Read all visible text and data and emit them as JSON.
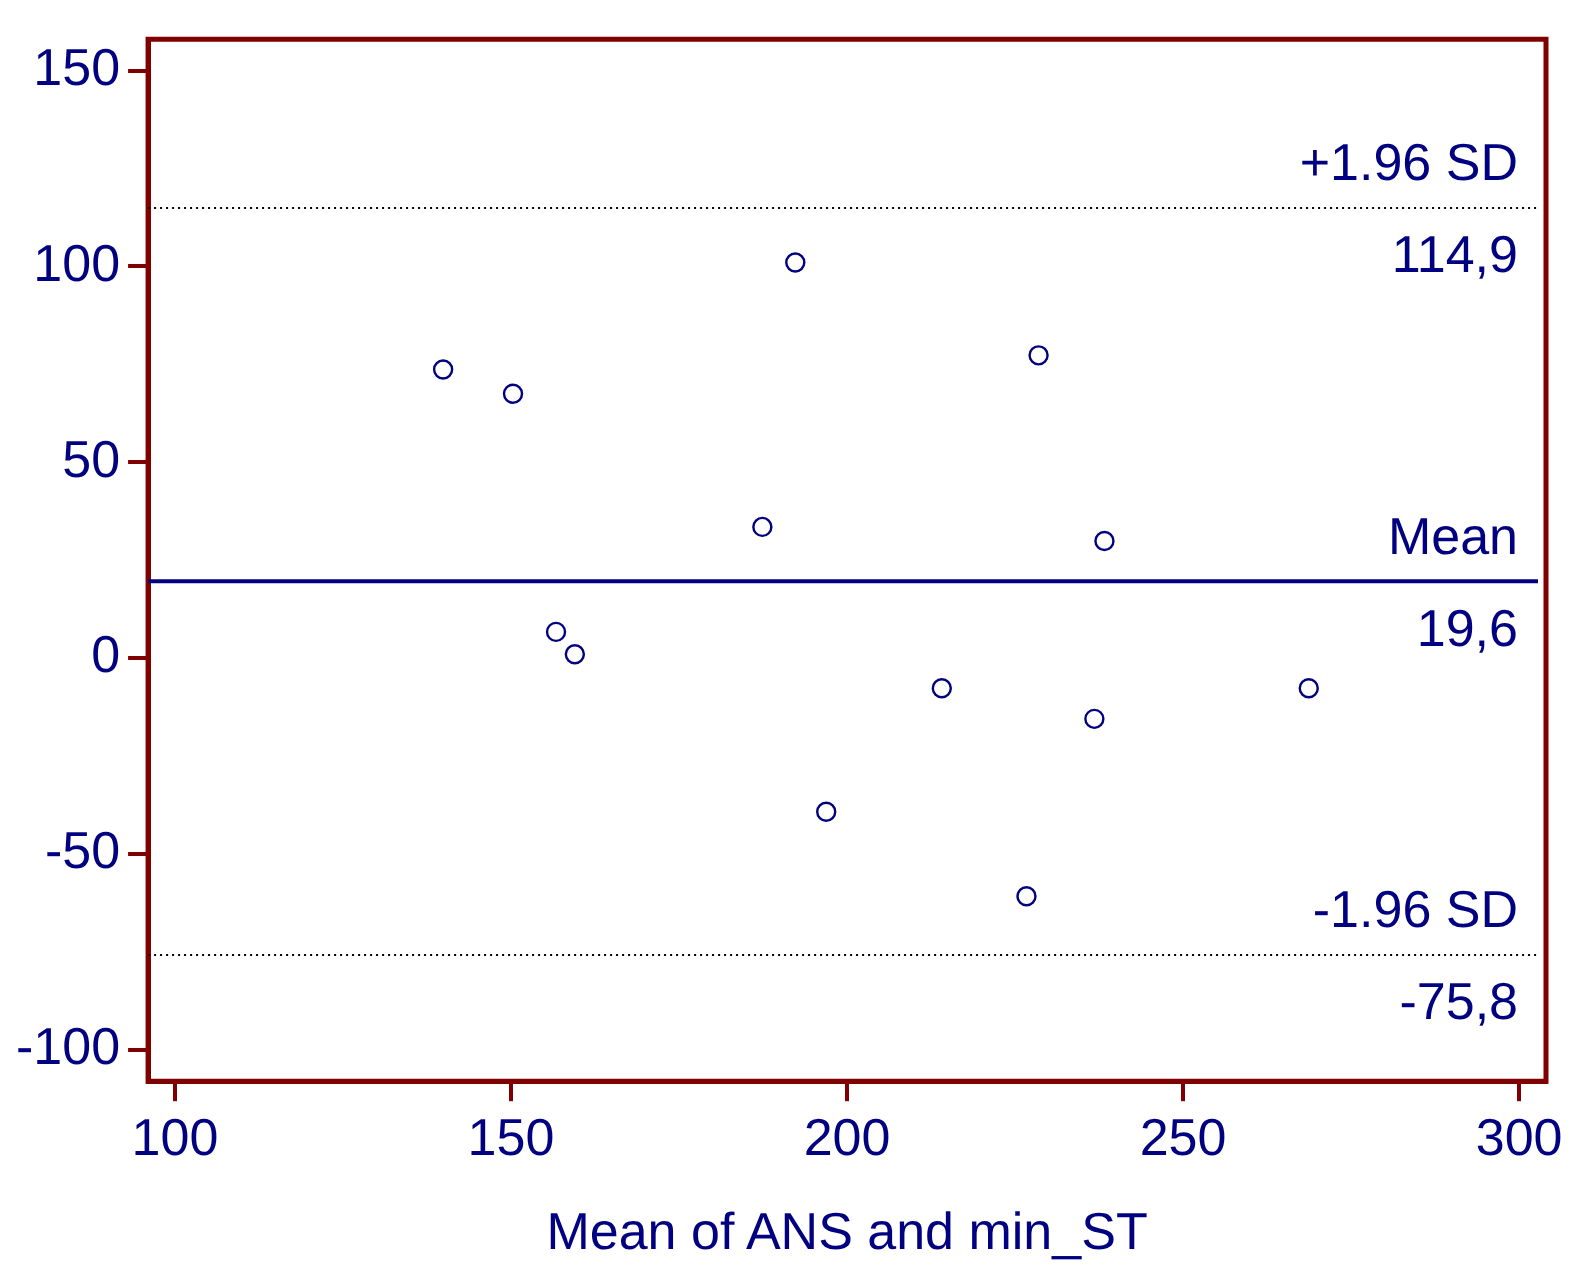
{
  "chart_data": {
    "type": "scatter",
    "xlabel": "Mean of ANS and min_ST",
    "x": [
      139.9,
      150.3,
      192.3,
      228.5,
      187.4,
      238.3,
      156.7,
      159.5,
      214.1,
      268.7,
      236.8,
      196.9,
      226.7
    ],
    "values": [
      73.7,
      67.5,
      101,
      77.3,
      33.5,
      29.9,
      6.7,
      1,
      -7.7,
      -7.7,
      -15.5,
      -39.2,
      -60.8
    ],
    "color": "#000080",
    "marker": "circle",
    "grid": false,
    "legend": false,
    "xlim": [
      96,
      304
    ],
    "xticks": [
      100,
      150,
      200,
      250,
      300
    ],
    "ylim": [
      -108,
      158
    ],
    "yticks": [
      -100,
      -50,
      0,
      50,
      100,
      150
    ],
    "ref_lines": [
      {
        "axis": "y",
        "value": 114.9,
        "label": "+1.96 SD",
        "color": "#000000",
        "line_style": "dotted"
      },
      {
        "axis": "y",
        "value": 19.6,
        "label": "Mean",
        "color": "#000080",
        "line_style": "solid"
      },
      {
        "axis": "y",
        "value": -75.8,
        "label": "-1.96 SD",
        "color": "#000000",
        "line_style": "dotted"
      }
    ],
    "annotations": [
      {
        "text": "114,9",
        "y": 114.9
      },
      {
        "text": "19,6",
        "y": 19.6
      },
      {
        "text": "-75,8",
        "y": -75.8
      }
    ]
  }
}
